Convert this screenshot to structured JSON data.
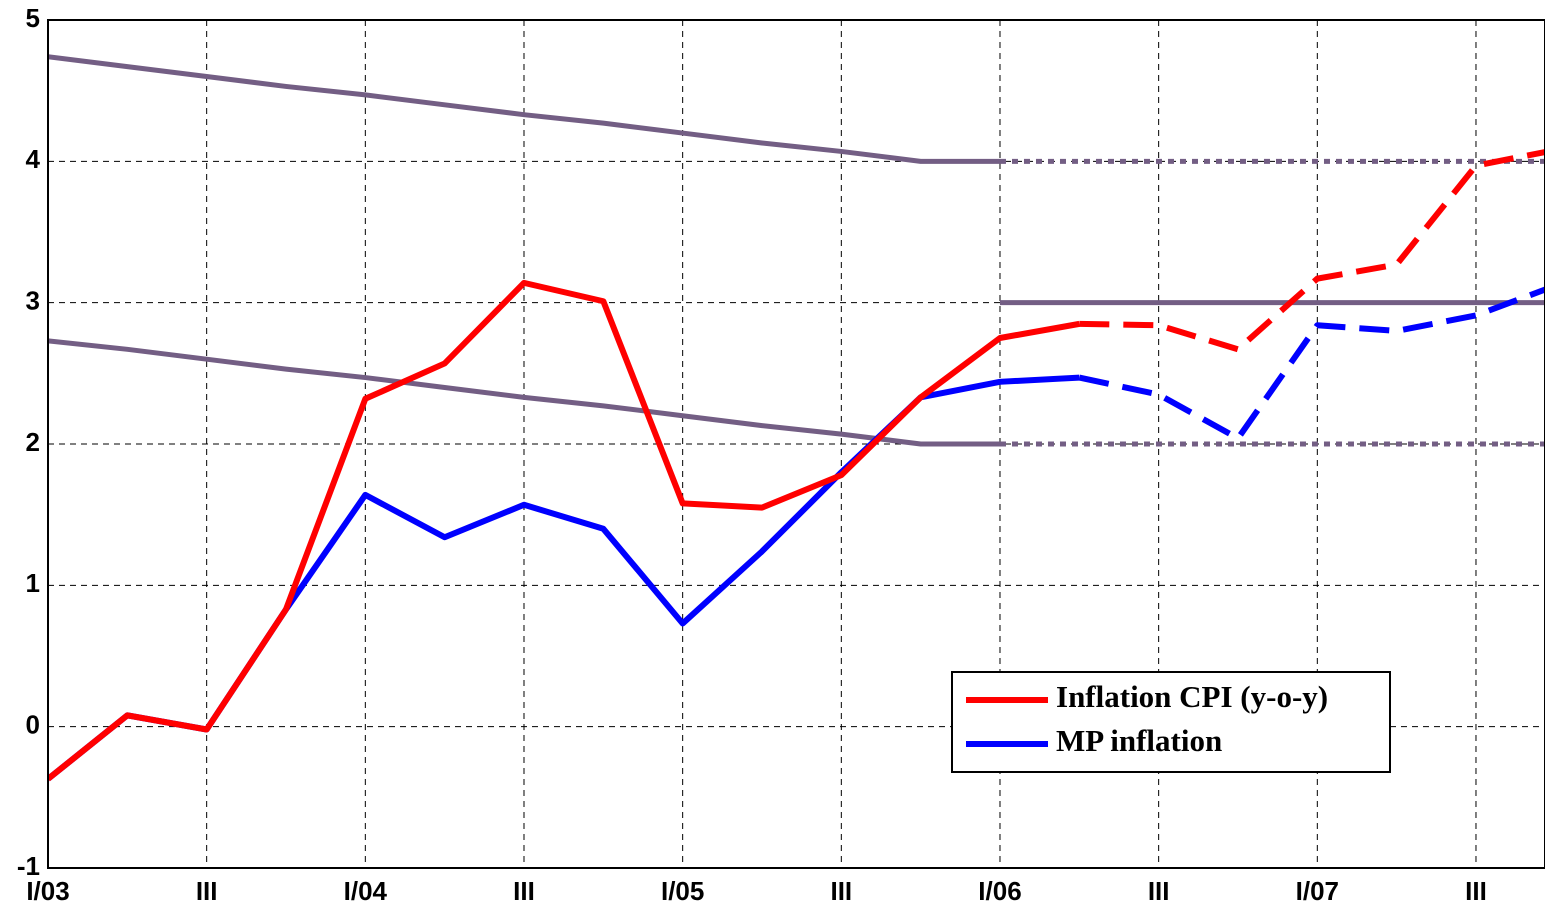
{
  "chart_data": {
    "type": "line",
    "categories": [
      "I/03",
      null,
      "III",
      null,
      "I/04",
      null,
      "III",
      null,
      "I/05",
      null,
      "III",
      null,
      "I/06",
      null,
      "III",
      null,
      "I/07",
      null,
      "III",
      null
    ],
    "xlim": [
      0,
      18.87
    ],
    "ylim": [
      -1,
      5
    ],
    "yticks": [
      -1,
      0,
      1,
      2,
      3,
      4,
      5
    ],
    "grid": true,
    "legend": "lower right",
    "series": [
      {
        "color": "#735e84",
        "dash": "dotted",
        "dash_from": 12,
        "values": [
          4.74,
          4.67,
          4.6,
          4.53,
          4.47,
          4.4,
          4.33,
          4.27,
          4.2,
          4.13,
          4.07,
          4.0,
          4.0,
          4.0,
          4.0,
          4.0,
          4.0,
          4.0,
          4.0,
          4.0
        ]
      },
      {
        "color": "#735e84",
        "dash": "dotted",
        "dash_from": 12,
        "values": [
          2.73,
          2.67,
          2.6,
          2.53,
          2.47,
          2.4,
          2.33,
          2.27,
          2.2,
          2.13,
          2.07,
          2.0,
          2.0,
          2.0,
          2.0,
          2.0,
          2.0,
          2.0,
          2.0,
          2.0
        ]
      },
      {
        "color": "#735e84",
        "values": [
          null,
          null,
          null,
          null,
          null,
          null,
          null,
          null,
          null,
          null,
          null,
          null,
          3,
          3,
          3,
          3,
          3,
          3,
          3,
          3
        ]
      },
      {
        "name": "MP inflation",
        "color": "#0000ff",
        "dash": "dashed",
        "dash_from": 13,
        "values": [
          -0.37,
          0.08,
          -0.02,
          0.83,
          1.64,
          1.34,
          1.57,
          1.4,
          0.73,
          1.24,
          1.8,
          2.33,
          2.44,
          2.47,
          2.35,
          2.04,
          2.84,
          2.8,
          2.91,
          3.12
        ]
      },
      {
        "name": "Inflation CPI (y-o-y)",
        "color": "#ff0000",
        "dash": "dashed",
        "dash_from": 13,
        "values": [
          -0.37,
          0.08,
          -0.02,
          0.83,
          2.32,
          2.57,
          3.14,
          3.01,
          1.58,
          1.55,
          1.78,
          2.33,
          2.75,
          2.85,
          2.84,
          2.67,
          3.17,
          3.27,
          3.97,
          4.08
        ]
      }
    ]
  }
}
